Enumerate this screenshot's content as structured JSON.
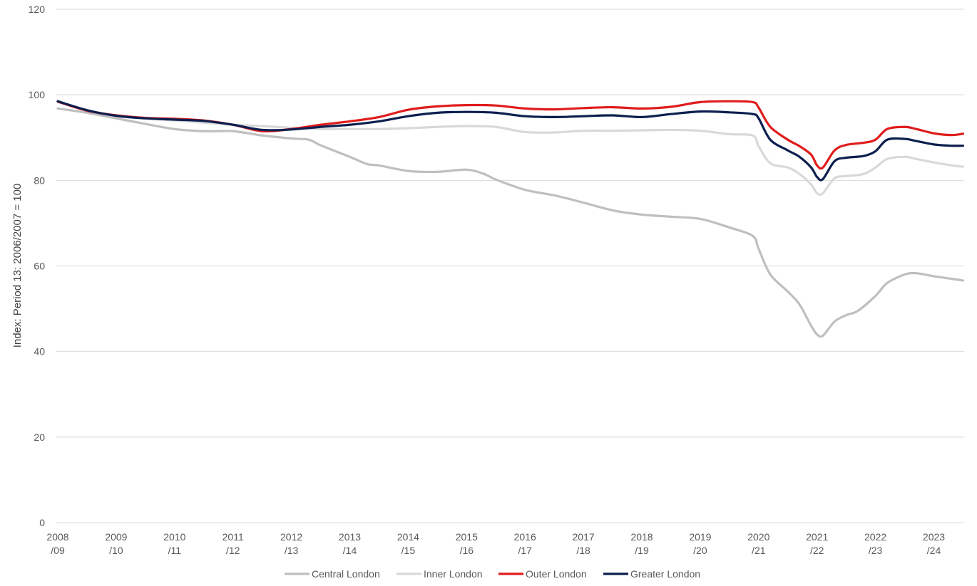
{
  "chart_data": {
    "type": "line",
    "title": "",
    "ylabel": "Index: Period 13: 2006/2007 = 100",
    "xlabel": "",
    "ylim": [
      0,
      120
    ],
    "yticks": [
      "0",
      "20",
      "40",
      "60",
      "80",
      "100",
      "120"
    ],
    "grid": true,
    "legend_position": "bottom",
    "x_range": [
      0,
      15.5
    ],
    "xticks": [
      {
        "line1": "2008",
        "line2": "/09"
      },
      {
        "line1": "2009",
        "line2": "/10"
      },
      {
        "line1": "2010",
        "line2": "/11"
      },
      {
        "line1": "2011",
        "line2": "/12"
      },
      {
        "line1": "2012",
        "line2": "/13"
      },
      {
        "line1": "2013",
        "line2": "/14"
      },
      {
        "line1": "2014",
        "line2": "/15"
      },
      {
        "line1": "2015",
        "line2": "/16"
      },
      {
        "line1": "2016",
        "line2": "/17"
      },
      {
        "line1": "2017",
        "line2": "/18"
      },
      {
        "line1": "2018",
        "line2": "/19"
      },
      {
        "line1": "2019",
        "line2": "/20"
      },
      {
        "line1": "2020",
        "line2": "/21"
      },
      {
        "line1": "2021",
        "line2": "/22"
      },
      {
        "line1": "2022",
        "line2": "/23"
      },
      {
        "line1": "2023",
        "line2": "/24"
      }
    ],
    "series": [
      {
        "name": "Central London",
        "color": "#bfbfbf",
        "points": [
          [
            0,
            96.8
          ],
          [
            0.5,
            95.8
          ],
          [
            1,
            94.5
          ],
          [
            1.5,
            93.2
          ],
          [
            2,
            92
          ],
          [
            2.5,
            91.5
          ],
          [
            3,
            91.5
          ],
          [
            3.5,
            90.5
          ],
          [
            4,
            89.8
          ],
          [
            4.3,
            89.5
          ],
          [
            4.5,
            88.2
          ],
          [
            5,
            85.5
          ],
          [
            5.3,
            83.8
          ],
          [
            5.5,
            83.5
          ],
          [
            6,
            82.2
          ],
          [
            6.5,
            82
          ],
          [
            7,
            82.5
          ],
          [
            7.3,
            81.5
          ],
          [
            7.5,
            80.2
          ],
          [
            8,
            77.8
          ],
          [
            8.5,
            76.5
          ],
          [
            9,
            74.8
          ],
          [
            9.5,
            73
          ],
          [
            10,
            72
          ],
          [
            10.5,
            71.5
          ],
          [
            11,
            71
          ],
          [
            11.5,
            69
          ],
          [
            11.9,
            67
          ],
          [
            12,
            64
          ],
          [
            12.2,
            58
          ],
          [
            12.5,
            54
          ],
          [
            12.7,
            51
          ],
          [
            12.9,
            46
          ],
          [
            13,
            44
          ],
          [
            13.1,
            43.7
          ],
          [
            13.3,
            47
          ],
          [
            13.5,
            48.5
          ],
          [
            13.7,
            49.5
          ],
          [
            14,
            53
          ],
          [
            14.2,
            56
          ],
          [
            14.5,
            58
          ],
          [
            14.7,
            58.3
          ],
          [
            15,
            57.6
          ],
          [
            15.3,
            57
          ],
          [
            15.5,
            56.6
          ]
        ]
      },
      {
        "name": "Inner London",
        "color": "#d9d9d9",
        "points": [
          [
            0,
            98.3
          ],
          [
            0.5,
            96.5
          ],
          [
            1,
            95
          ],
          [
            1.5,
            94.5
          ],
          [
            2,
            94
          ],
          [
            2.5,
            93.5
          ],
          [
            3,
            93
          ],
          [
            3.5,
            92.7
          ],
          [
            4,
            92.3
          ],
          [
            4.5,
            92
          ],
          [
            5,
            92
          ],
          [
            5.5,
            92
          ],
          [
            6,
            92.2
          ],
          [
            6.5,
            92.5
          ],
          [
            7,
            92.7
          ],
          [
            7.5,
            92.5
          ],
          [
            8,
            91.3
          ],
          [
            8.5,
            91.2
          ],
          [
            9,
            91.6
          ],
          [
            9.5,
            91.6
          ],
          [
            10,
            91.7
          ],
          [
            10.5,
            91.8
          ],
          [
            11,
            91.6
          ],
          [
            11.5,
            90.8
          ],
          [
            11.9,
            90.5
          ],
          [
            12,
            88
          ],
          [
            12.2,
            84
          ],
          [
            12.5,
            83
          ],
          [
            12.7,
            81.5
          ],
          [
            12.9,
            79
          ],
          [
            13,
            77
          ],
          [
            13.1,
            77
          ],
          [
            13.3,
            80.5
          ],
          [
            13.5,
            81
          ],
          [
            13.8,
            81.5
          ],
          [
            14,
            83
          ],
          [
            14.2,
            85
          ],
          [
            14.5,
            85.5
          ],
          [
            14.7,
            85
          ],
          [
            15,
            84.2
          ],
          [
            15.3,
            83.5
          ],
          [
            15.5,
            83.2
          ]
        ]
      },
      {
        "name": "Outer London",
        "color": "#e01c1c",
        "points": [
          [
            0,
            98.4
          ],
          [
            0.5,
            96.3
          ],
          [
            1,
            95.2
          ],
          [
            1.5,
            94.6
          ],
          [
            2,
            94.4
          ],
          [
            2.5,
            94
          ],
          [
            3,
            93
          ],
          [
            3.5,
            91.5
          ],
          [
            4,
            92
          ],
          [
            4.5,
            93
          ],
          [
            5,
            93.8
          ],
          [
            5.5,
            94.8
          ],
          [
            6,
            96.5
          ],
          [
            6.5,
            97.3
          ],
          [
            7,
            97.6
          ],
          [
            7.5,
            97.5
          ],
          [
            8,
            96.8
          ],
          [
            8.5,
            96.6
          ],
          [
            9,
            96.9
          ],
          [
            9.5,
            97.1
          ],
          [
            10,
            96.8
          ],
          [
            10.5,
            97.2
          ],
          [
            11,
            98.3
          ],
          [
            11.5,
            98.5
          ],
          [
            11.9,
            98.3
          ],
          [
            12,
            97
          ],
          [
            12.2,
            92.5
          ],
          [
            12.5,
            89.5
          ],
          [
            12.7,
            88
          ],
          [
            12.9,
            86
          ],
          [
            13,
            83.5
          ],
          [
            13.1,
            83
          ],
          [
            13.3,
            87
          ],
          [
            13.5,
            88.3
          ],
          [
            13.8,
            88.8
          ],
          [
            14,
            89.5
          ],
          [
            14.2,
            92
          ],
          [
            14.5,
            92.5
          ],
          [
            14.7,
            92
          ],
          [
            15,
            91
          ],
          [
            15.3,
            90.6
          ],
          [
            15.5,
            90.9
          ]
        ]
      },
      {
        "name": "Greater London",
        "color": "#0c1f4f",
        "points": [
          [
            0,
            98.5
          ],
          [
            0.5,
            96.4
          ],
          [
            1,
            95.1
          ],
          [
            1.5,
            94.5
          ],
          [
            2,
            94.2
          ],
          [
            2.5,
            93.9
          ],
          [
            3,
            93
          ],
          [
            3.5,
            91.8
          ],
          [
            4,
            91.9
          ],
          [
            4.5,
            92.5
          ],
          [
            5,
            93
          ],
          [
            5.5,
            93.8
          ],
          [
            6,
            95
          ],
          [
            6.5,
            95.8
          ],
          [
            7,
            96
          ],
          [
            7.5,
            95.8
          ],
          [
            8,
            95
          ],
          [
            8.5,
            94.8
          ],
          [
            9,
            95
          ],
          [
            9.5,
            95.2
          ],
          [
            10,
            94.8
          ],
          [
            10.5,
            95.5
          ],
          [
            11,
            96.1
          ],
          [
            11.5,
            95.9
          ],
          [
            11.9,
            95.5
          ],
          [
            12,
            94.5
          ],
          [
            12.2,
            89.5
          ],
          [
            12.5,
            87
          ],
          [
            12.7,
            85.5
          ],
          [
            12.9,
            83
          ],
          [
            13,
            80.8
          ],
          [
            13.1,
            80.3
          ],
          [
            13.3,
            84.5
          ],
          [
            13.5,
            85.3
          ],
          [
            13.8,
            85.7
          ],
          [
            14,
            86.8
          ],
          [
            14.2,
            89.5
          ],
          [
            14.5,
            89.7
          ],
          [
            14.7,
            89.2
          ],
          [
            15,
            88.4
          ],
          [
            15.3,
            88.1
          ],
          [
            15.5,
            88.1
          ]
        ]
      }
    ]
  }
}
